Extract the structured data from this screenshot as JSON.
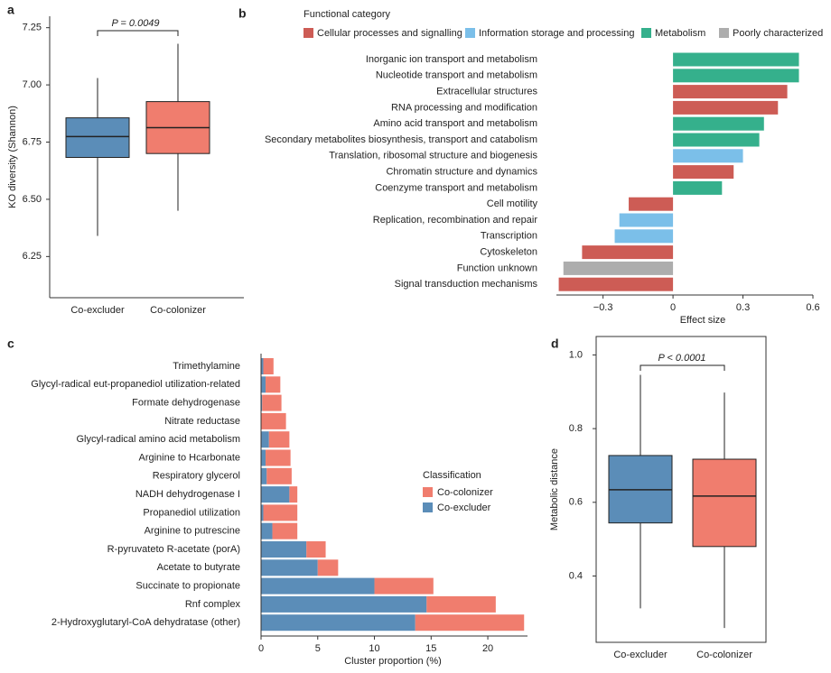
{
  "chart_data": [
    {
      "type": "box",
      "label": "a",
      "annotation": "P = 0.0049",
      "ylabel": "KO diversity (Shannon)",
      "categories": [
        "Co-excluder",
        "Co-colonizer"
      ],
      "colors": [
        "#5b8db8",
        "#f07d6e"
      ],
      "stats": {
        "low": [
          6.34,
          6.45
        ],
        "q1": [
          6.683,
          6.7
        ],
        "median": [
          6.774,
          6.813
        ],
        "q3": [
          6.856,
          6.927
        ],
        "high": [
          7.03,
          7.18
        ]
      },
      "ylim": [
        6.07,
        7.3
      ],
      "yticks": [
        6.25,
        {
          "value": 6.5,
          "label": "6.50"
        },
        6.75,
        {
          "value": 7,
          "label": "7.00"
        },
        7.25
      ]
    },
    {
      "type": "bar",
      "label": "b",
      "legend_title": "Functional category",
      "xlabel": "Effect size",
      "categories": [
        "Inorganic ion transport and metabolism",
        "Nucleotide transport and metabolism",
        "Extracellular structures",
        "RNA processing and modification",
        "Amino acid transport and metabolism",
        "Secondary metabolites biosynthesis, transport and catabolism",
        "Translation, ribosomal structure and biogenesis",
        "Chromatin structure and dynamics",
        "Coenzyme transport and metabolism",
        "Cell motility",
        "Replication, recombination and repair",
        "Transcription",
        "Cytoskeleton",
        "Function unknown",
        "Signal transduction mechanisms"
      ],
      "series": [
        {
          "name": "Cellular processes and signalling",
          "color": "#cd5c55",
          "values": [
            null,
            null,
            0.49,
            0.45,
            null,
            null,
            null,
            0.26,
            null,
            -0.19,
            null,
            null,
            -0.39,
            null,
            -0.49
          ]
        },
        {
          "name": "Information storage and processing",
          "color": "#7bbfe9",
          "values": [
            null,
            null,
            null,
            null,
            null,
            null,
            0.3,
            null,
            null,
            null,
            -0.23,
            -0.25,
            null,
            null,
            null
          ]
        },
        {
          "name": "Metabolism",
          "color": "#35b08c",
          "values": [
            0.54,
            0.54,
            null,
            null,
            0.39,
            0.37,
            null,
            null,
            0.21,
            null,
            null,
            null,
            null,
            null,
            null
          ]
        },
        {
          "name": "Poorly characterized",
          "color": "#adadad",
          "values": [
            null,
            null,
            null,
            null,
            null,
            null,
            null,
            null,
            null,
            null,
            null,
            null,
            null,
            -0.47,
            null
          ]
        }
      ],
      "xlim": [
        -0.5,
        0.6
      ],
      "xticks": [
        {
          "value": -0.3,
          "label": "−0.3"
        },
        0,
        0.3,
        0.6
      ]
    },
    {
      "type": "stacked_bar",
      "label": "c",
      "legend_title": "Classification",
      "xlabel": "Cluster proportion (%)",
      "categories": [
        "Trimethylamine",
        "Glycyl-radical eut-propanediol utilization-related",
        "Formate dehydrogenase",
        "Nitrate reductase",
        "Glycyl-radical amino acid metabolism",
        "Arginine to Hcarbonate",
        "Respiratory glycerol",
        "NADH dehydrogenase I",
        "Propanediol utilization",
        "Arginine to putrescine",
        "R-pyruvateto R-acetate (porA)",
        "Acetate to butyrate",
        "Succinate to propionate",
        "Rnf complex",
        "2-Hydroxyglutaryl-CoA dehydratase (other)"
      ],
      "series": [
        {
          "name": "Co-colonizer",
          "color": "#f07d6e",
          "values": [
            0.9,
            1.3,
            1.7,
            2.2,
            1.8,
            2.2,
            2.2,
            0.7,
            3.0,
            2.2,
            1.7,
            1.8,
            5.2,
            6.1,
            9.6
          ]
        },
        {
          "name": "Co-excluder",
          "color": "#5b8db8",
          "values": [
            0.2,
            0.4,
            0.1,
            0,
            0.7,
            0.4,
            0.5,
            2.5,
            0.2,
            1.0,
            4.0,
            5.0,
            10.0,
            14.6,
            13.6
          ]
        }
      ],
      "xlim": [
        0,
        23.5
      ],
      "xticks": [
        0,
        5,
        10,
        15,
        20
      ]
    },
    {
      "type": "box",
      "label": "d",
      "annotation": "P < 0.0001",
      "ylabel": "Metabolic distance",
      "frame": true,
      "categories": [
        "Co-excluder",
        "Co-colonizer"
      ],
      "colors": [
        "#5b8db8",
        "#f07d6e"
      ],
      "stats": {
        "low": [
          0.312,
          0.259
        ],
        "q1": [
          0.544,
          0.48
        ],
        "median": [
          0.634,
          0.617
        ],
        "q3": [
          0.727,
          0.717
        ],
        "high": [
          0.946,
          0.898
        ]
      },
      "ylim": [
        0.22,
        1.05
      ],
      "yticks": [
        0.4,
        0.6,
        0.8,
        {
          "value": 1,
          "label": "1.0"
        }
      ]
    }
  ]
}
